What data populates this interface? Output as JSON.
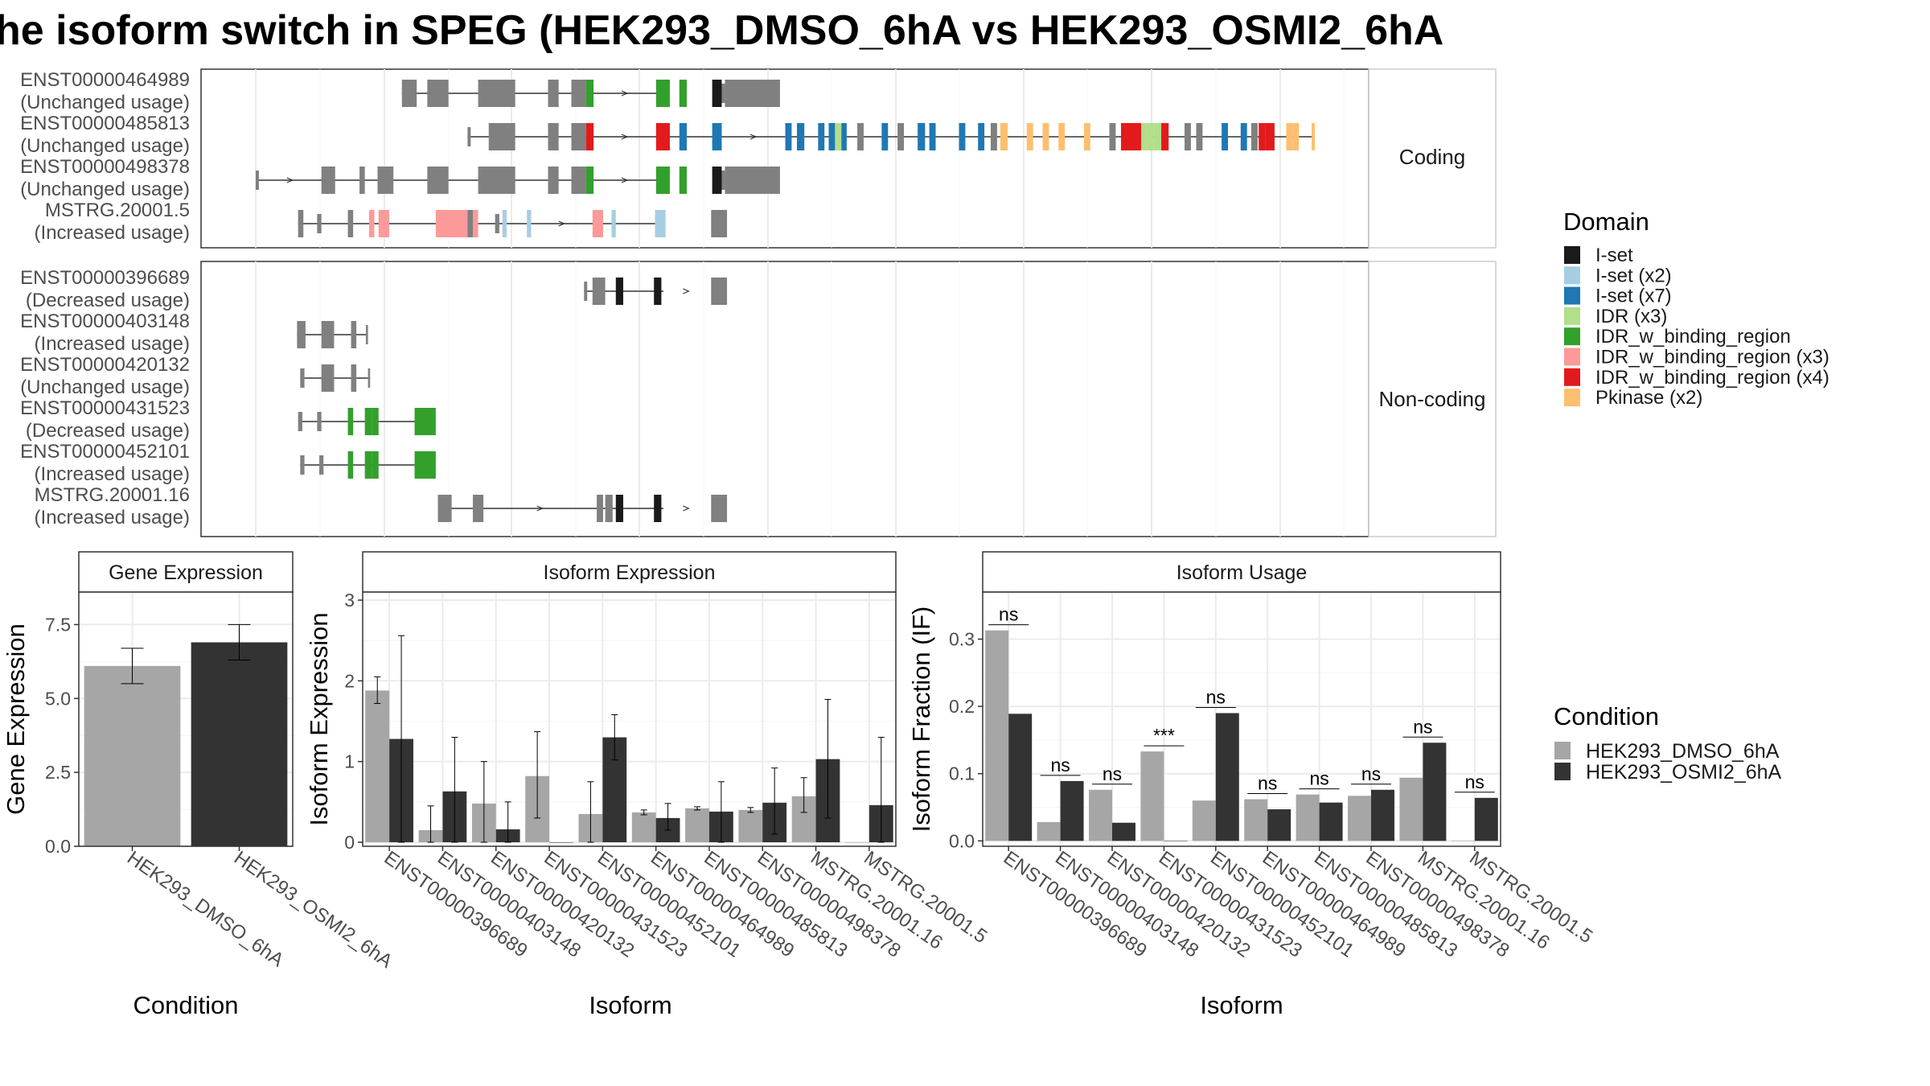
{
  "title": "he isoform switch in SPEG (HEK293_DMSO_6hA vs HEK293_OSMI2_6hA",
  "colors": {
    "dmso": "#a6a6a6",
    "osmi": "#333333",
    "intron": "#333333",
    "exon": "#808080",
    "grid": "#ebebeb",
    "border": "#333333"
  },
  "domains": [
    {
      "name": "I-set",
      "color": "#1a1a1a"
    },
    {
      "name": "I-set (x2)",
      "color": "#a6cee3"
    },
    {
      "name": "I-set (x7)",
      "color": "#1f78b4"
    },
    {
      "name": "IDR (x3)",
      "color": "#b2df8a"
    },
    {
      "name": "IDR_w_binding_region",
      "color": "#33a02c"
    },
    {
      "name": "IDR_w_binding_region (x3)",
      "color": "#fb9a99"
    },
    {
      "name": "IDR_w_binding_region (x4)",
      "color": "#e31a1c"
    },
    {
      "name": "Pkinase (x2)",
      "color": "#fdbf6f"
    }
  ],
  "domain_legend_title": "Domain",
  "condition_legend_title": "Condition",
  "conditions": [
    "HEK293_DMSO_6hA",
    "HEK293_OSMI2_6hA"
  ],
  "structure": {
    "coding_label": "Coding",
    "noncoding_label": "Non-coding",
    "coding": [
      {
        "id": "ENST00000464989",
        "usage": "(Unchanged usage)",
        "start": 0.138,
        "end": 0.385,
        "exons": [
          [
            0.138,
            0.152,
            "E"
          ],
          [
            0.162,
            0.182,
            "E"
          ],
          [
            0.21,
            0.245,
            "E"
          ],
          [
            0.276,
            0.286,
            "E"
          ],
          [
            0.298,
            0.312,
            "E"
          ],
          [
            0.312,
            0.319,
            "G"
          ],
          [
            0.378,
            0.391,
            "G"
          ],
          [
            0.4,
            0.407,
            "G"
          ],
          [
            0.431,
            0.44,
            "K"
          ],
          [
            0.44,
            0.443,
            "E"
          ],
          [
            0.443,
            0.495,
            "E"
          ]
        ]
      },
      {
        "id": "ENST00000485813",
        "usage": "(Unchanged usage)",
        "start": 0.2,
        "end": 1.0,
        "exons": [
          [
            0.2,
            0.203,
            "E"
          ],
          [
            0.22,
            0.245,
            "E"
          ],
          [
            0.276,
            0.286,
            "E"
          ],
          [
            0.298,
            0.312,
            "E"
          ],
          [
            0.312,
            0.319,
            "R"
          ],
          [
            0.378,
            0.391,
            "R"
          ],
          [
            0.4,
            0.407,
            "C"
          ],
          [
            0.431,
            0.44,
            "C"
          ],
          [
            0.5,
            0.506,
            "C"
          ],
          [
            0.511,
            0.518,
            "C"
          ],
          [
            0.531,
            0.537,
            "C"
          ],
          [
            0.541,
            0.547,
            "C"
          ],
          [
            0.547,
            0.553,
            "D"
          ],
          [
            0.553,
            0.558,
            "C"
          ],
          [
            0.568,
            0.574,
            "E"
          ],
          [
            0.591,
            0.597,
            "C"
          ],
          [
            0.606,
            0.612,
            "E"
          ],
          [
            0.625,
            0.632,
            "C"
          ],
          [
            0.636,
            0.642,
            "C"
          ],
          [
            0.664,
            0.67,
            "C"
          ],
          [
            0.682,
            0.688,
            "C"
          ],
          [
            0.694,
            0.7,
            "E"
          ],
          [
            0.703,
            0.71,
            "O"
          ],
          [
            0.728,
            0.734,
            "O"
          ],
          [
            0.743,
            0.749,
            "O"
          ],
          [
            0.758,
            0.764,
            "O"
          ],
          [
            0.782,
            0.788,
            "O"
          ],
          [
            0.806,
            0.812,
            "E"
          ],
          [
            0.817,
            0.836,
            "R"
          ],
          [
            0.836,
            0.842,
            "D"
          ],
          [
            0.842,
            0.848,
            "D"
          ],
          [
            0.848,
            0.855,
            "D"
          ],
          [
            0.855,
            0.862,
            "R"
          ],
          [
            0.877,
            0.883,
            "E"
          ],
          [
            0.888,
            0.894,
            "E"
          ],
          [
            0.912,
            0.918,
            "C"
          ],
          [
            0.93,
            0.936,
            "C"
          ],
          [
            0.94,
            0.946,
            "E"
          ],
          [
            0.947,
            0.953,
            "R"
          ],
          [
            0.953,
            0.962,
            "R"
          ],
          [
            0.973,
            0.979,
            "O"
          ],
          [
            0.979,
            0.985,
            "O"
          ],
          [
            0.997,
            1.0,
            "O"
          ]
        ]
      },
      {
        "id": "ENST00000498378",
        "usage": "(Unchanged usage)",
        "start": 0.0,
        "end": 0.385,
        "exons": [
          [
            0.0,
            0.003,
            "E"
          ],
          [
            0.062,
            0.075,
            "E"
          ],
          [
            0.098,
            0.103,
            "E"
          ],
          [
            0.115,
            0.13,
            "E"
          ],
          [
            0.162,
            0.182,
            "E"
          ],
          [
            0.21,
            0.245,
            "E"
          ],
          [
            0.276,
            0.286,
            "E"
          ],
          [
            0.298,
            0.312,
            "E"
          ],
          [
            0.312,
            0.319,
            "G"
          ],
          [
            0.378,
            0.391,
            "G"
          ],
          [
            0.4,
            0.407,
            "G"
          ],
          [
            0.431,
            0.44,
            "K"
          ],
          [
            0.44,
            0.443,
            "E"
          ],
          [
            0.443,
            0.495,
            "E"
          ]
        ]
      },
      {
        "id": "MSTRG.20001.5",
        "usage": "(Increased usage)",
        "start": 0.04,
        "end": 0.385,
        "exons": [
          [
            0.04,
            0.045,
            "E"
          ],
          [
            0.058,
            0.062,
            "E"
          ],
          [
            0.087,
            0.092,
            "E"
          ],
          [
            0.107,
            0.112,
            "P"
          ],
          [
            0.116,
            0.126,
            "P"
          ],
          [
            0.17,
            0.2,
            "P"
          ],
          [
            0.2,
            0.205,
            "E"
          ],
          [
            0.205,
            0.21,
            "P"
          ],
          [
            0.226,
            0.23,
            "E"
          ],
          [
            0.233,
            0.237,
            "B"
          ],
          [
            0.256,
            0.26,
            "B"
          ],
          [
            0.318,
            0.328,
            "P"
          ],
          [
            0.336,
            0.34,
            "B"
          ],
          [
            0.377,
            0.387,
            "B"
          ],
          [
            0.43,
            0.445,
            "E"
          ]
        ]
      }
    ],
    "noncoding": [
      {
        "id": "ENST00000396689",
        "usage": "(Decreased usage)",
        "start": 0.31,
        "end": 0.385,
        "exons": [
          [
            0.31,
            0.313,
            "E"
          ],
          [
            0.318,
            0.325,
            "E"
          ],
          [
            0.325,
            0.33,
            "E"
          ],
          [
            0.34,
            0.347,
            "K"
          ],
          [
            0.376,
            0.383,
            "K"
          ],
          [
            0.43,
            0.445,
            "E"
          ]
        ]
      },
      {
        "id": "ENST00000403148",
        "usage": "(Increased usage)",
        "start": 0.039,
        "end": 0.105,
        "exons": [
          [
            0.039,
            0.047,
            "E"
          ],
          [
            0.062,
            0.074,
            "E"
          ],
          [
            0.09,
            0.095,
            "E"
          ],
          [
            0.104,
            0.106,
            "E"
          ]
        ]
      },
      {
        "id": "ENST00000420132",
        "usage": "(Unchanged usage)",
        "start": 0.042,
        "end": 0.108,
        "exons": [
          [
            0.042,
            0.046,
            "E"
          ],
          [
            0.062,
            0.074,
            "E"
          ],
          [
            0.09,
            0.095,
            "E"
          ],
          [
            0.106,
            0.108,
            "E"
          ]
        ]
      },
      {
        "id": "ENST00000431523",
        "usage": "(Decreased usage)",
        "start": 0.04,
        "end": 0.159,
        "exons": [
          [
            0.04,
            0.044,
            "E"
          ],
          [
            0.058,
            0.062,
            "E"
          ],
          [
            0.087,
            0.092,
            "G"
          ],
          [
            0.103,
            0.11,
            "G"
          ],
          [
            0.11,
            0.116,
            "G"
          ],
          [
            0.15,
            0.17,
            "G"
          ]
        ]
      },
      {
        "id": "ENST00000452101",
        "usage": "(Increased usage)",
        "start": 0.042,
        "end": 0.159,
        "exons": [
          [
            0.042,
            0.046,
            "E"
          ],
          [
            0.06,
            0.064,
            "E"
          ],
          [
            0.087,
            0.092,
            "G"
          ],
          [
            0.103,
            0.11,
            "G"
          ],
          [
            0.11,
            0.116,
            "G"
          ],
          [
            0.15,
            0.17,
            "G"
          ]
        ]
      },
      {
        "id": "MSTRG.20001.16",
        "usage": "(Increased usage)",
        "start": 0.172,
        "end": 0.385,
        "exons": [
          [
            0.172,
            0.185,
            "E"
          ],
          [
            0.205,
            0.215,
            "E"
          ],
          [
            0.322,
            0.328,
            "E"
          ],
          [
            0.33,
            0.337,
            "E"
          ],
          [
            0.34,
            0.347,
            "K"
          ],
          [
            0.376,
            0.383,
            "K"
          ],
          [
            0.43,
            0.445,
            "E"
          ]
        ]
      }
    ]
  },
  "chart_data": [
    {
      "type": "bar",
      "title": "Gene Expression",
      "xlabel": "Condition",
      "ylabel": "Gene Expression",
      "categories": [
        "HEK293_DMSO_6hA",
        "HEK293_OSMI2_6hA"
      ],
      "values": [
        6.1,
        6.9
      ],
      "err_low": [
        5.5,
        6.3
      ],
      "err_high": [
        6.7,
        7.5
      ],
      "ylim": [
        0,
        8.6
      ],
      "yticks": [
        0.0,
        2.5,
        5.0,
        7.5
      ],
      "ytick_labels": [
        "0.0",
        "2.5",
        "5.0",
        "7.5"
      ]
    },
    {
      "type": "bar",
      "title": "Isoform Expression",
      "xlabel": "Isoform",
      "ylabel": "Isoform Expression",
      "categories": [
        "ENST00000396689",
        "ENST00000403148",
        "ENST00000420132",
        "ENST00000431523",
        "ENST00000452101",
        "ENST00000464989",
        "ENST00000485813",
        "ENST00000498378",
        "MSTRG.20001.16",
        "MSTRG.20001.5"
      ],
      "series": [
        {
          "name": "HEK293_DMSO_6hA",
          "values": [
            1.88,
            0.15,
            0.48,
            0.82,
            0.35,
            0.37,
            0.42,
            0.4,
            0.57,
            0.0
          ],
          "err_low": [
            1.72,
            0.0,
            0.0,
            0.3,
            0.0,
            0.34,
            0.4,
            0.37,
            0.37,
            0.0
          ],
          "err_high": [
            2.05,
            0.45,
            1.0,
            1.37,
            0.75,
            0.4,
            0.44,
            0.43,
            0.8,
            0.0
          ]
        },
        {
          "name": "HEK293_OSMI2_6hA",
          "values": [
            1.28,
            0.63,
            0.16,
            0.0,
            1.3,
            0.3,
            0.38,
            0.49,
            1.03,
            0.46
          ],
          "err_low": [
            0.0,
            0.0,
            0.0,
            0.0,
            1.02,
            0.15,
            0.0,
            0.1,
            0.3,
            0.0
          ],
          "err_high": [
            2.56,
            1.3,
            0.5,
            0.0,
            1.58,
            0.48,
            0.75,
            0.92,
            1.77,
            1.3
          ]
        }
      ],
      "ylim": [
        -0.05,
        3.1
      ],
      "yticks": [
        0,
        1,
        2,
        3
      ],
      "ytick_labels": [
        "0",
        "1",
        "2",
        "3"
      ]
    },
    {
      "type": "bar",
      "title": "Isoform Usage",
      "xlabel": "Isoform",
      "ylabel": "Isoform Fraction (IF)",
      "categories": [
        "ENST00000396689",
        "ENST00000403148",
        "ENST00000420132",
        "ENST00000431523",
        "ENST00000452101",
        "ENST00000464989",
        "ENST00000485813",
        "ENST00000498378",
        "MSTRG.20001.16",
        "MSTRG.20001.5"
      ],
      "series": [
        {
          "name": "HEK293_DMSO_6hA",
          "values": [
            0.313,
            0.028,
            0.076,
            0.133,
            0.06,
            0.062,
            0.069,
            0.067,
            0.094,
            0.0
          ]
        },
        {
          "name": "HEK293_OSMI2_6hA",
          "values": [
            0.189,
            0.089,
            0.027,
            0.0,
            0.19,
            0.047,
            0.057,
            0.076,
            0.146,
            0.064
          ]
        }
      ],
      "significance": [
        "ns",
        "ns",
        "ns",
        "***",
        "ns",
        "ns",
        "ns",
        "ns",
        "ns",
        "ns"
      ],
      "ylim": [
        -0.008,
        0.37
      ],
      "yticks": [
        0.0,
        0.1,
        0.2,
        0.3
      ],
      "ytick_labels": [
        "0.0",
        "0.1",
        "0.2",
        "0.3"
      ]
    }
  ]
}
